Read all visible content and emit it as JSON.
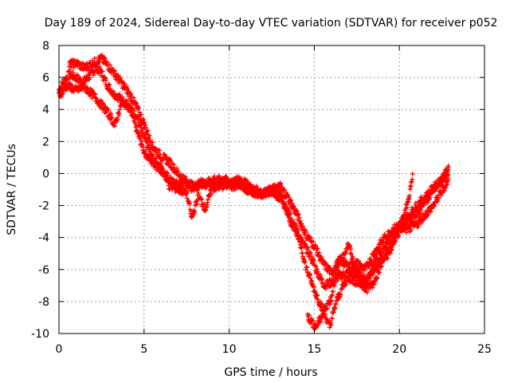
{
  "chart_data": {
    "type": "scatter",
    "title": "Day 189 of 2024, Sidereal Day-to-day VTEC variation (SDTVAR) for receiver p052",
    "xlabel": "GPS time / hours",
    "ylabel": "SDTVAR / TECUs",
    "xlim": [
      0,
      25
    ],
    "ylim": [
      -10,
      8
    ],
    "x_ticks": [
      0,
      5,
      10,
      15,
      20,
      25
    ],
    "y_ticks": [
      -10,
      -8,
      -6,
      -4,
      -2,
      0,
      2,
      4,
      6,
      8
    ],
    "grid": true,
    "marker": "+",
    "marker_color": "#ff0000",
    "series": [
      {
        "x": [
          0.0,
          0.3,
          0.6,
          1.0,
          1.4,
          1.8,
          2.2,
          2.5,
          2.8,
          3.2,
          3.6,
          4.0,
          4.3,
          4.6,
          5.0,
          5.4,
          5.8,
          6.2,
          6.6,
          7.0,
          7.4,
          7.8,
          8.2,
          8.6,
          9.0,
          9.4,
          9.8,
          10.2,
          10.6,
          11.0,
          11.5,
          12.0,
          12.5,
          13.0,
          13.3,
          13.6,
          14.0,
          14.4,
          14.8,
          15.2,
          15.6,
          16.0,
          16.5,
          17.0,
          17.5,
          18.0,
          18.5,
          19.0,
          19.5,
          20.0,
          20.5,
          21.0,
          21.5,
          22.0,
          22.5,
          22.9
        ],
        "y": [
          5.2,
          5.8,
          6.2,
          6.0,
          5.7,
          6.1,
          6.6,
          6.3,
          5.6,
          5.0,
          4.7,
          4.3,
          3.6,
          2.6,
          1.4,
          0.8,
          0.4,
          0.0,
          -0.5,
          -0.7,
          -0.5,
          -0.9,
          -0.5,
          -0.7,
          -0.3,
          -0.6,
          -0.4,
          -0.8,
          -0.7,
          -1.0,
          -1.2,
          -1.3,
          -1.0,
          -1.3,
          -2.0,
          -3.0,
          -3.8,
          -4.5,
          -5.2,
          -6.2,
          -7.0,
          -6.8,
          -6.4,
          -6.2,
          -6.3,
          -6.6,
          -6.0,
          -5.3,
          -4.5,
          -3.6,
          -3.1,
          -2.5,
          -1.8,
          -1.0,
          -0.4,
          0.2
        ]
      },
      {
        "x": [
          0.6,
          1.0,
          1.5,
          2.0,
          2.5,
          3.0,
          3.5,
          4.0,
          4.5,
          5.0,
          5.5,
          6.0,
          6.5,
          7.0,
          7.5,
          8.0,
          8.5,
          9.0,
          9.5,
          10.0,
          10.5,
          11.0,
          11.5,
          12.0,
          12.5,
          13.0,
          13.5,
          14.0,
          14.5,
          15.0,
          15.5,
          16.0,
          16.5,
          17.0,
          17.5,
          18.0,
          18.5,
          19.0,
          19.5,
          20.0,
          20.5,
          21.0,
          21.5,
          22.0,
          22.5,
          22.9
        ],
        "y": [
          6.8,
          6.9,
          6.6,
          6.9,
          7.2,
          6.6,
          5.9,
          5.2,
          4.3,
          3.1,
          1.7,
          1.1,
          0.7,
          0.0,
          -0.5,
          -0.9,
          -0.6,
          -0.7,
          -0.3,
          -0.5,
          -0.6,
          -0.9,
          -1.0,
          -1.2,
          -1.0,
          -0.8,
          -1.6,
          -2.6,
          -3.8,
          -4.5,
          -5.6,
          -6.2,
          -5.4,
          -5.8,
          -5.6,
          -6.0,
          -5.0,
          -4.2,
          -3.6,
          -3.2,
          -2.7,
          -2.0,
          -1.5,
          -0.9,
          -0.3,
          0.3
        ]
      },
      {
        "x": [
          0.0,
          0.5,
          1.0,
          1.5,
          2.0,
          2.5,
          3.0,
          3.3,
          3.7,
          4.1,
          4.5,
          5.0,
          5.5,
          6.0,
          6.5,
          7.0,
          7.5,
          7.8,
          8.2,
          8.6,
          9.0,
          9.5,
          10.0,
          10.5,
          11.0,
          11.5,
          12.0,
          12.5,
          13.0,
          13.5,
          14.0,
          14.5,
          15.0,
          15.5,
          15.9,
          16.3,
          16.7,
          17.0,
          17.5,
          18.0,
          18.5,
          19.0,
          19.5,
          20.0,
          20.5,
          21.0,
          21.5,
          22.0,
          22.5,
          22.9
        ],
        "y": [
          4.9,
          5.5,
          5.2,
          5.4,
          4.9,
          4.3,
          3.6,
          3.0,
          4.5,
          4.2,
          3.6,
          2.4,
          0.9,
          0.4,
          -0.8,
          -1.0,
          -1.2,
          -2.8,
          -1.4,
          -2.2,
          -0.9,
          -0.8,
          -0.7,
          -0.4,
          -0.6,
          -1.1,
          -1.3,
          -1.1,
          -1.6,
          -2.4,
          -3.6,
          -5.8,
          -7.3,
          -8.5,
          -9.6,
          -8.0,
          -7.0,
          -6.5,
          -6.8,
          -7.1,
          -6.9,
          -5.5,
          -4.8,
          -3.3,
          -3.5,
          -3.2,
          -2.6,
          -2.0,
          -1.1,
          -0.4
        ]
      },
      {
        "x": [
          14.6,
          14.8,
          15.1,
          15.4,
          15.7,
          16.0,
          16.3,
          16.7,
          17.0,
          17.4,
          17.8,
          18.1,
          18.4,
          18.7,
          19.0,
          19.3,
          19.6,
          19.9,
          20.2,
          20.5,
          20.8
        ],
        "y": [
          -8.9,
          -9.2,
          -9.6,
          -9.0,
          -8.3,
          -7.8,
          -6.0,
          -5.2,
          -4.4,
          -5.9,
          -6.6,
          -7.2,
          -6.0,
          -5.1,
          -4.9,
          -4.3,
          -4.0,
          -3.5,
          -2.8,
          -1.8,
          -0.1
        ]
      }
    ]
  }
}
